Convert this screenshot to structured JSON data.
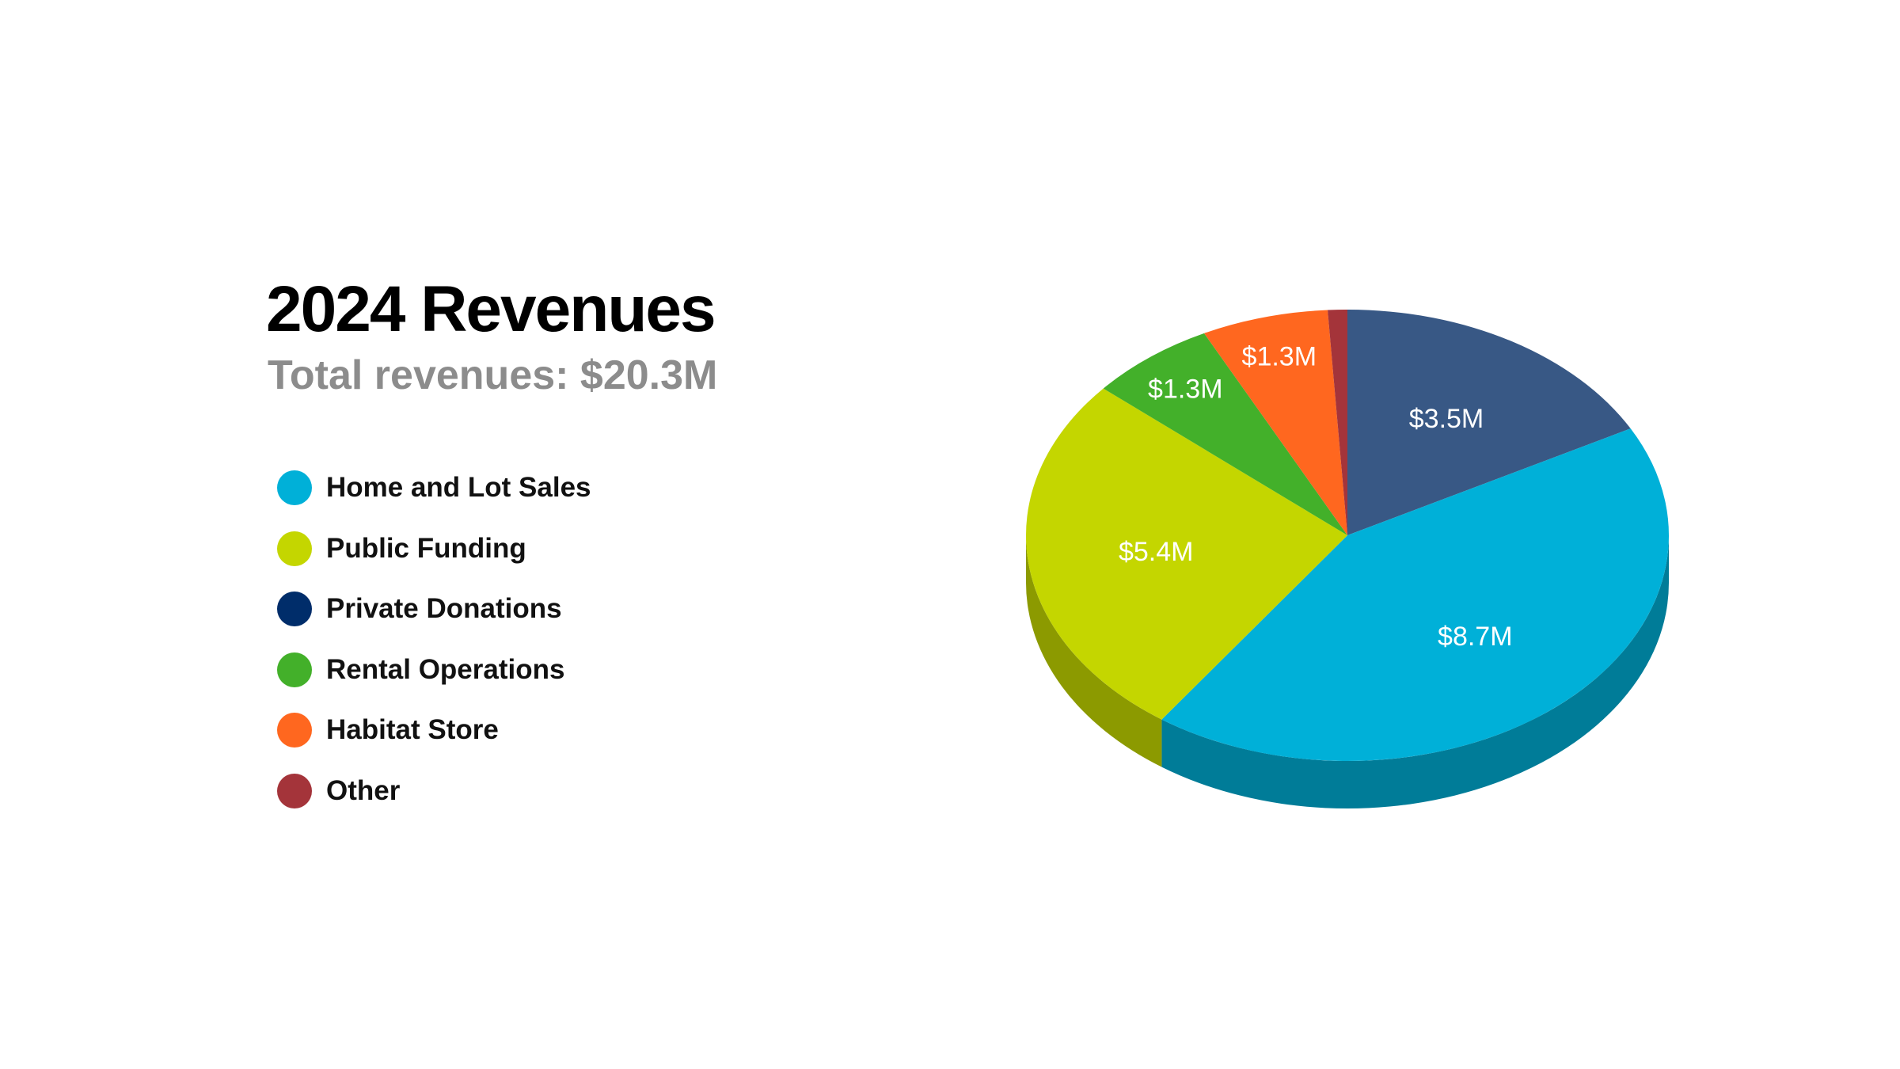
{
  "chart_data": {
    "type": "pie",
    "title": "2024 Revenues",
    "subtitle": "Total revenues: $20.3M",
    "legend_position": "left",
    "slices": [
      {
        "name": "Home and Lot Sales",
        "value": 8.7,
        "label": "$8.7M",
        "color": "#00b0d8",
        "side_color": "#007c98",
        "legend_color": "#00b0d8"
      },
      {
        "name": "Public Funding",
        "value": 5.4,
        "label": "$5.4M",
        "color": "#c4d600",
        "side_color": "#8c9a00",
        "legend_color": "#c4d600"
      },
      {
        "name": "Private Donations",
        "value": 3.5,
        "label": "$3.5M",
        "color": "#385885",
        "side_color": "#26405f",
        "legend_color": "#002d6a"
      },
      {
        "name": "Rental Operations",
        "value": 1.3,
        "label": "$1.3M",
        "color": "#43b02a",
        "side_color": "#2f7d1e",
        "legend_color": "#43b02a"
      },
      {
        "name": "Habitat Store",
        "value": 1.3,
        "label": "$1.3M",
        "color": "#ff671f",
        "side_color": "#b44815",
        "legend_color": "#ff671f"
      },
      {
        "name": "Other",
        "value": 0.2,
        "label": "",
        "color": "#a4343a",
        "side_color": "#702428",
        "legend_color": "#a4343a"
      }
    ]
  }
}
